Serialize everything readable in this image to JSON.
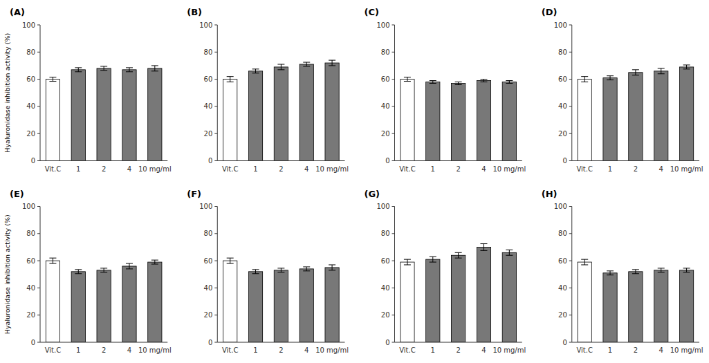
{
  "chart_data": [
    {
      "type": "bar",
      "title": "(A)",
      "ylabel": "Hyaluronidase inhibition activity (%)",
      "categories": [
        "Vit.C",
        "1",
        "2",
        "4",
        "10 mg/ml"
      ],
      "values": [
        60,
        67,
        68,
        67,
        68
      ],
      "errors": [
        1.5,
        1.5,
        1.5,
        1.5,
        2.0
      ],
      "colors": [
        "white",
        "#787878",
        "#787878",
        "#787878",
        "#787878"
      ],
      "ylim": [
        0,
        100
      ],
      "yticks": [
        0,
        20,
        40,
        60,
        80,
        100
      ],
      "grid": false
    },
    {
      "type": "bar",
      "title": "(B)",
      "categories": [
        "Vit.C",
        "1",
        "2",
        "4",
        "10 mg/ml"
      ],
      "values": [
        60,
        66,
        69,
        71,
        72
      ],
      "errors": [
        2.0,
        1.5,
        2.0,
        1.5,
        2.0
      ],
      "colors": [
        "white",
        "#787878",
        "#787878",
        "#787878",
        "#787878"
      ],
      "ylim": [
        0,
        100
      ],
      "yticks": [
        0,
        20,
        40,
        60,
        80,
        100
      ],
      "grid": false
    },
    {
      "type": "bar",
      "title": "(C)",
      "categories": [
        "Vit.C",
        "1",
        "2",
        "4",
        "10 mg/ml"
      ],
      "values": [
        60,
        58,
        57,
        59,
        58
      ],
      "errors": [
        1.5,
        1.0,
        1.0,
        1.0,
        1.0
      ],
      "colors": [
        "white",
        "#787878",
        "#787878",
        "#787878",
        "#787878"
      ],
      "ylim": [
        0,
        100
      ],
      "yticks": [
        0,
        20,
        40,
        60,
        80,
        100
      ],
      "grid": false
    },
    {
      "type": "bar",
      "title": "(D)",
      "categories": [
        "Vit.C",
        "1",
        "2",
        "4",
        "10 mg/ml"
      ],
      "values": [
        60,
        61,
        65,
        66,
        69
      ],
      "errors": [
        2.0,
        1.5,
        2.0,
        2.0,
        1.5
      ],
      "colors": [
        "white",
        "#787878",
        "#787878",
        "#787878",
        "#787878"
      ],
      "ylim": [
        0,
        100
      ],
      "yticks": [
        0,
        20,
        40,
        60,
        80,
        100
      ],
      "grid": false
    },
    {
      "type": "bar",
      "title": "(E)",
      "ylabel": "Hyaluronidase inhibition activity (%)",
      "categories": [
        "Vit.C",
        "1",
        "2",
        "4",
        "10 mg/ml"
      ],
      "values": [
        60,
        52,
        53,
        56,
        59
      ],
      "errors": [
        2.0,
        1.5,
        1.5,
        2.0,
        1.5
      ],
      "colors": [
        "white",
        "#787878",
        "#787878",
        "#787878",
        "#787878"
      ],
      "ylim": [
        0,
        100
      ],
      "yticks": [
        0,
        20,
        40,
        60,
        80,
        100
      ],
      "grid": false
    },
    {
      "type": "bar",
      "title": "(F)",
      "categories": [
        "Vit.C",
        "1",
        "2",
        "4",
        "10 mg/ml"
      ],
      "values": [
        60,
        52,
        53,
        54,
        55
      ],
      "errors": [
        2.0,
        1.5,
        1.5,
        1.5,
        2.0
      ],
      "colors": [
        "white",
        "#787878",
        "#787878",
        "#787878",
        "#787878"
      ],
      "ylim": [
        0,
        100
      ],
      "yticks": [
        0,
        20,
        40,
        60,
        80,
        100
      ],
      "grid": false
    },
    {
      "type": "bar",
      "title": "(G)",
      "categories": [
        "Vit.C",
        "1",
        "2",
        "4",
        "10 mg/ml"
      ],
      "values": [
        59,
        61,
        64,
        70,
        66
      ],
      "errors": [
        2.0,
        2.0,
        2.0,
        2.5,
        2.0
      ],
      "colors": [
        "white",
        "#787878",
        "#787878",
        "#787878",
        "#787878"
      ],
      "ylim": [
        0,
        100
      ],
      "yticks": [
        0,
        20,
        40,
        60,
        80,
        100
      ],
      "grid": false
    },
    {
      "type": "bar",
      "title": "(H)",
      "categories": [
        "Vit.C",
        "1",
        "2",
        "4",
        "10 mg/ml"
      ],
      "values": [
        59,
        51,
        52,
        53,
        53
      ],
      "errors": [
        2.0,
        1.5,
        1.5,
        1.5,
        1.5
      ],
      "colors": [
        "white",
        "#787878",
        "#787878",
        "#787878",
        "#787878"
      ],
      "ylim": [
        0,
        100
      ],
      "yticks": [
        0,
        20,
        40,
        60,
        80,
        100
      ],
      "grid": false
    }
  ]
}
